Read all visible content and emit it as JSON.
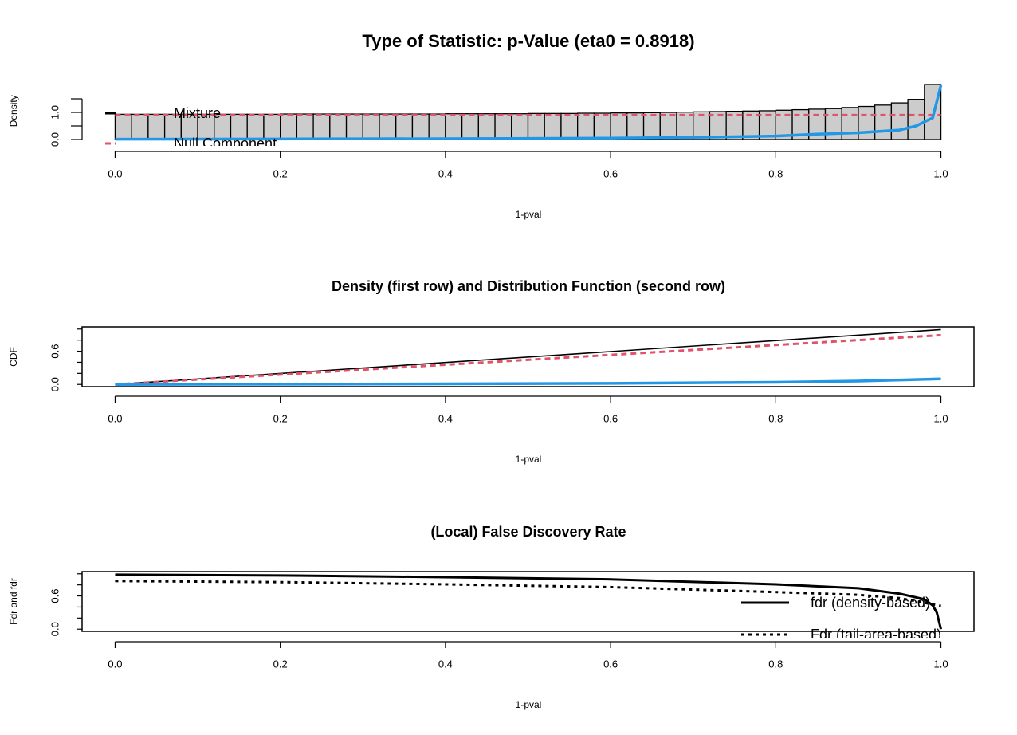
{
  "chart_data": [
    {
      "type": "histogram",
      "title": "Type of Statistic: p-Value (eta0 = 0.8918)",
      "x_label": "1-pval",
      "y_label": "Density",
      "bins": [
        0,
        0.02,
        0.04,
        0.06,
        0.08,
        0.1,
        0.12,
        0.14,
        0.16,
        0.18,
        0.2,
        0.22,
        0.24,
        0.26,
        0.28,
        0.3,
        0.32,
        0.34,
        0.36,
        0.38,
        0.4,
        0.42,
        0.44,
        0.46,
        0.48,
        0.5,
        0.52,
        0.54,
        0.56,
        0.58,
        0.6,
        0.62,
        0.64,
        0.66,
        0.68,
        0.7,
        0.72,
        0.74,
        0.76,
        0.78,
        0.8,
        0.82,
        0.84,
        0.86,
        0.88,
        0.9,
        0.92,
        0.94,
        0.96,
        0.98,
        1
      ],
      "values": [
        0.93,
        0.93,
        0.93,
        0.93,
        0.93,
        0.93,
        0.93,
        0.93,
        0.93,
        0.93,
        0.94,
        0.94,
        0.94,
        0.94,
        0.94,
        0.94,
        0.94,
        0.94,
        0.94,
        0.94,
        0.95,
        0.95,
        0.95,
        0.95,
        0.95,
        0.96,
        0.96,
        0.96,
        0.97,
        0.97,
        0.98,
        0.98,
        0.99,
        1.0,
        1.01,
        1.02,
        1.03,
        1.04,
        1.05,
        1.06,
        1.08,
        1.1,
        1.12,
        1.14,
        1.18,
        1.22,
        1.27,
        1.35,
        1.48,
        2.03
      ],
      "color": "#cccccc",
      "series": [
        {
          "color": "#DF536B",
          "line_style": "dashed",
          "x": [
            0,
            1
          ],
          "values": [
            0.9,
            0.9
          ]
        },
        {
          "color": "#2297E6",
          "line_style": "solid",
          "x": [
            0,
            0.2,
            0.4,
            0.6,
            0.7,
            0.8,
            0.85,
            0.9,
            0.95,
            0.97,
            0.99,
            1.0
          ],
          "values": [
            0.01,
            0.02,
            0.03,
            0.05,
            0.08,
            0.13,
            0.2,
            0.25,
            0.35,
            0.5,
            0.8,
            2.0
          ]
        }
      ],
      "legend": [
        {
          "name": "Mixture",
          "color": "#000000",
          "line_style": "solid"
        },
        {
          "name": "Null Component",
          "color": "#DF536B",
          "line_style": "dashed"
        }
      ],
      "xlim": [
        -0.04,
        1.04
      ],
      "ylim": [
        0,
        2.1
      ],
      "xticks": [
        {
          "value": 0,
          "label": "0.0"
        },
        0.2,
        0.4,
        0.6,
        0.8,
        {
          "value": 1,
          "label": "1.0"
        }
      ],
      "yticks": [
        {
          "value": 0,
          "label": "0.0"
        },
        {
          "value": 0.5,
          "label": null
        },
        {
          "value": 1,
          "label": "1.0"
        },
        {
          "value": 1.5,
          "label": null
        }
      ]
    },
    {
      "type": "line",
      "title": "Density (first row) and Distribution Function (second row)",
      "x_label": "1-pval",
      "y_label": "CDF",
      "series": [
        {
          "color": "#000000",
          "line_style": "solid",
          "x": [
            0,
            1
          ],
          "values": [
            0,
            0.99
          ]
        },
        {
          "color": "#DF536B",
          "line_style": "dashed",
          "x": [
            0,
            1
          ],
          "values": [
            0,
            0.89
          ]
        },
        {
          "color": "#2297E6",
          "line_style": "solid",
          "x": [
            0,
            0.4,
            0.6,
            0.8,
            0.9,
            1.0
          ],
          "values": [
            0,
            0.01,
            0.02,
            0.04,
            0.06,
            0.1
          ]
        }
      ],
      "xlim": [
        -0.04,
        1.04
      ],
      "ylim": [
        -0.04,
        1.04
      ],
      "xticks": [
        {
          "value": 0,
          "label": "0.0"
        },
        0.2,
        0.4,
        0.6,
        0.8,
        {
          "value": 1,
          "label": "1.0"
        }
      ],
      "yticks": [
        {
          "value": 0,
          "label": "0.0"
        },
        {
          "value": 0.2,
          "label": null
        },
        {
          "value": 0.4,
          "label": null
        },
        0.6,
        {
          "value": 0.8,
          "label": null
        },
        {
          "value": 1,
          "label": null
        }
      ]
    },
    {
      "type": "line",
      "title": "(Local) False Discovery Rate",
      "x_label": "1-pval",
      "y_label": "Fdr and fdr",
      "series": [
        {
          "name": "fdr (density-based)",
          "color": "#000000",
          "line_style": "solid",
          "x": [
            0,
            0.2,
            0.4,
            0.6,
            0.8,
            0.9,
            0.95,
            0.98,
            0.99,
            0.995,
            1.0
          ],
          "values": [
            0.985,
            0.97,
            0.94,
            0.9,
            0.81,
            0.74,
            0.64,
            0.54,
            0.43,
            0.3,
            0
          ]
        },
        {
          "name": "Fdr (tail-area-based)",
          "color": "#000000",
          "line_style": "dotted",
          "x": [
            0,
            0.2,
            0.4,
            0.6,
            0.8,
            0.9,
            0.95,
            1.0
          ],
          "values": [
            0.87,
            0.85,
            0.81,
            0.76,
            0.67,
            0.62,
            0.56,
            0.42
          ]
        }
      ],
      "xlim": [
        -0.04,
        1.04
      ],
      "ylim": [
        -0.04,
        1.04
      ],
      "xticks": [
        {
          "value": 0,
          "label": "0.0"
        },
        0.2,
        0.4,
        0.6,
        0.8,
        {
          "value": 1,
          "label": "1.0"
        }
      ],
      "yticks": [
        {
          "value": 0,
          "label": "0.0"
        },
        {
          "value": 0.2,
          "label": null
        },
        {
          "value": 0.4,
          "label": null
        },
        0.6,
        {
          "value": 0.8,
          "label": null
        },
        {
          "value": 1,
          "label": null
        }
      ]
    }
  ]
}
